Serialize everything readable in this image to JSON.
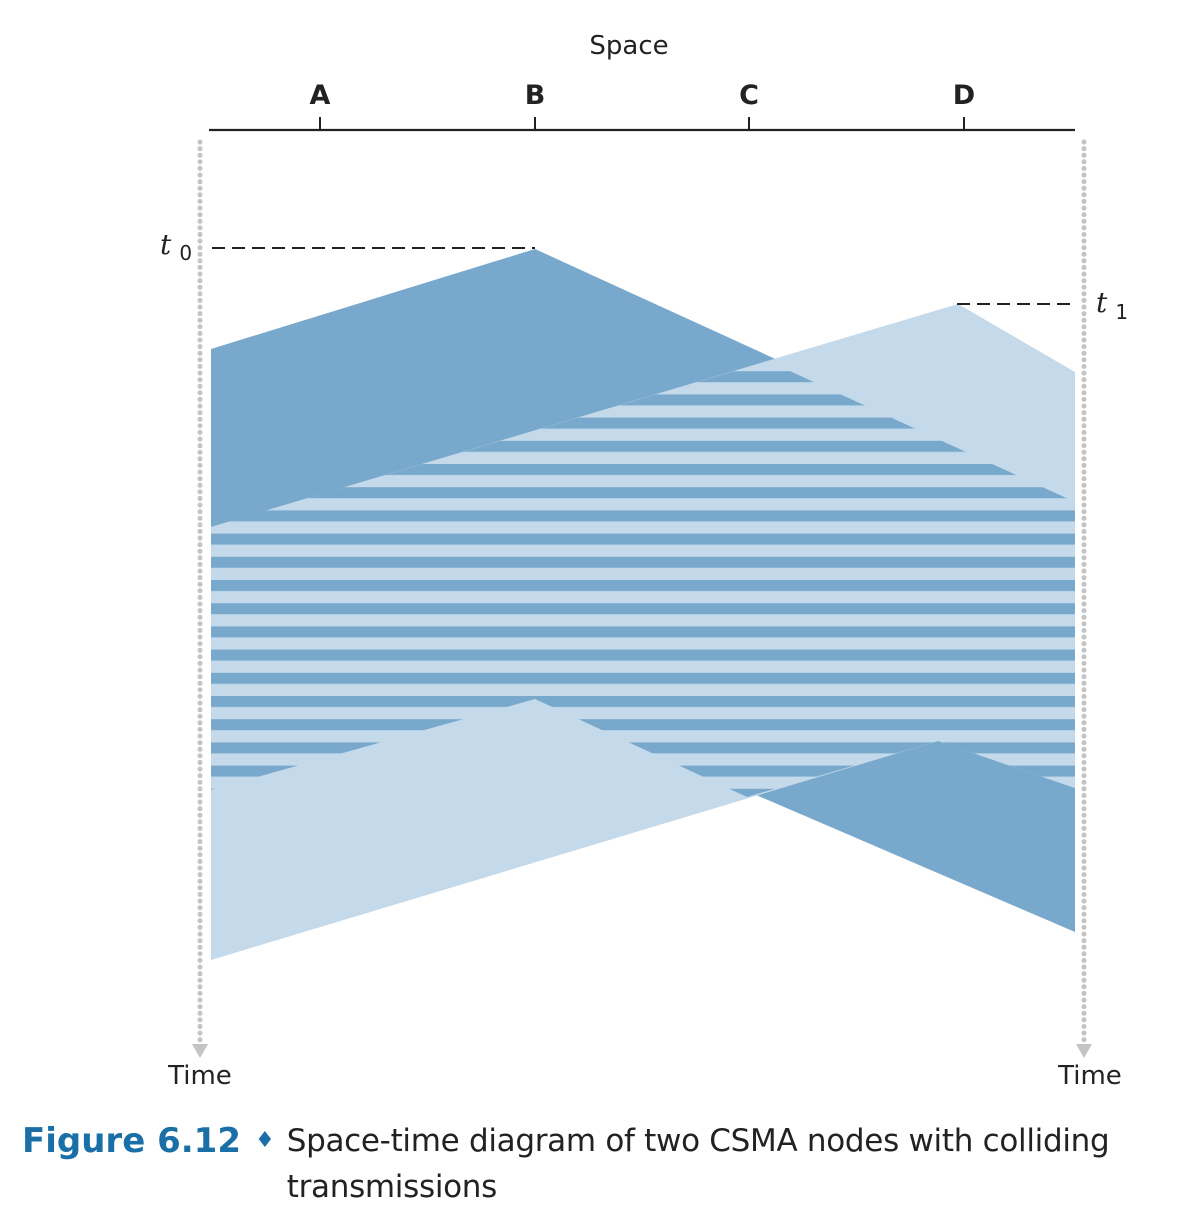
{
  "diagram": {
    "space_title": "Space",
    "nodes": [
      "A",
      "B",
      "C",
      "D"
    ],
    "time_left": "Time",
    "time_right": "Time",
    "t0_symbol": "t",
    "t0_subscript": "0",
    "t1_symbol": "t",
    "t1_subscript": "1"
  },
  "caption": {
    "label": "Figure 6.12",
    "separator": "♦",
    "text": "Space-time diagram of two CSMA nodes with colliding transmissions"
  },
  "colors": {
    "dark_blue": "#78a9cd",
    "light_blue": "#c4d9e9",
    "accent": "#1a6fa6",
    "line": "#222222",
    "dotted": "#c4c4c4"
  }
}
